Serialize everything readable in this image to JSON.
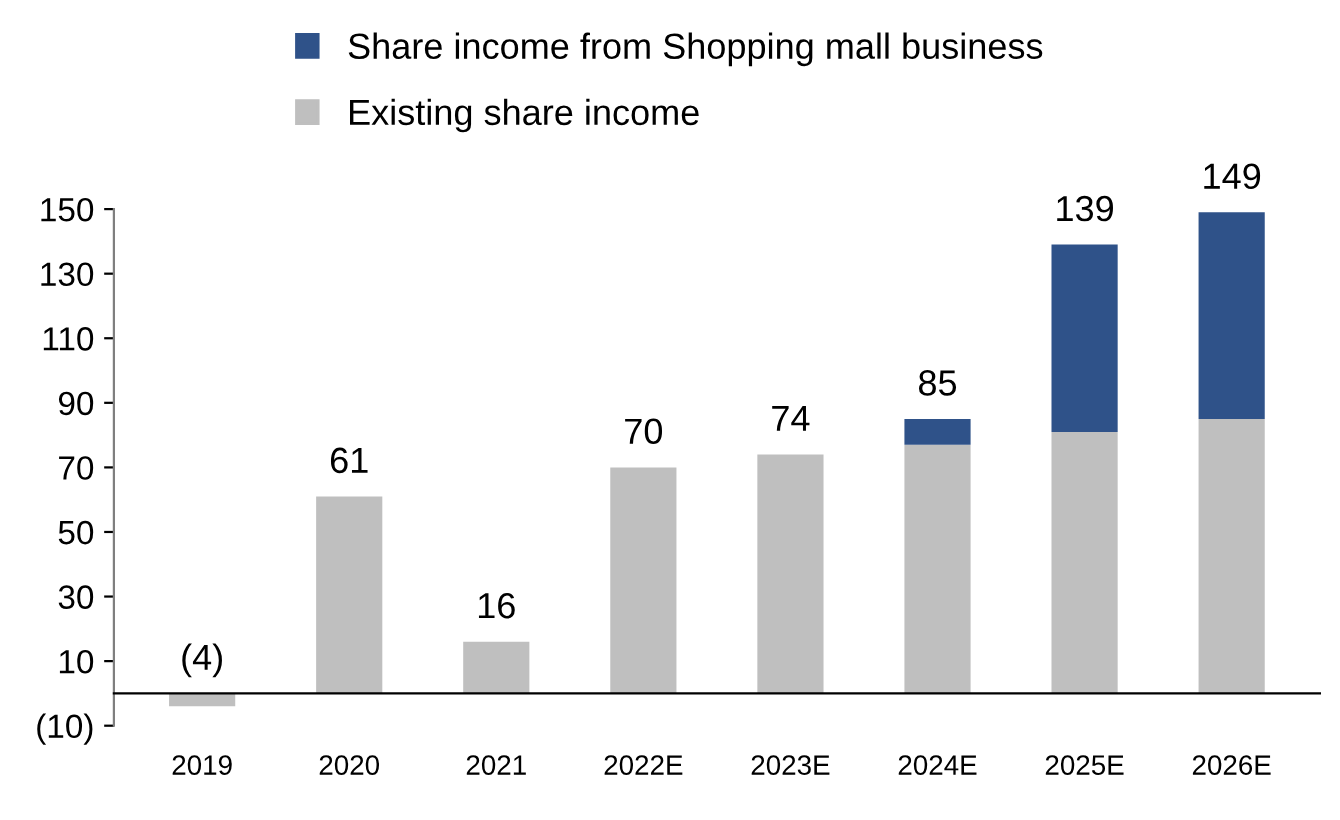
{
  "chart_data": {
    "type": "bar",
    "stacked": true,
    "categories": [
      "2019",
      "2020",
      "2021",
      "2022E",
      "2023E",
      "2024E",
      "2025E",
      "2026E"
    ],
    "series": [
      {
        "name": "Existing share income",
        "color": "#bfbfbf",
        "values": [
          -4,
          61,
          16,
          70,
          74,
          77,
          81,
          85
        ]
      },
      {
        "name": "Share income from Shopping mall business",
        "color": "#2f5289",
        "values": [
          null,
          null,
          null,
          null,
          null,
          8,
          58,
          64
        ]
      }
    ],
    "totals": [
      "(4)",
      "61",
      "16",
      "70",
      "74",
      "85",
      "139",
      "149"
    ],
    "ylim": [
      -10,
      150
    ],
    "yticks": [
      {
        "value": -10,
        "label": "(10)"
      },
      10,
      30,
      50,
      70,
      90,
      110,
      130,
      150
    ],
    "grid": false,
    "legend": "top"
  }
}
